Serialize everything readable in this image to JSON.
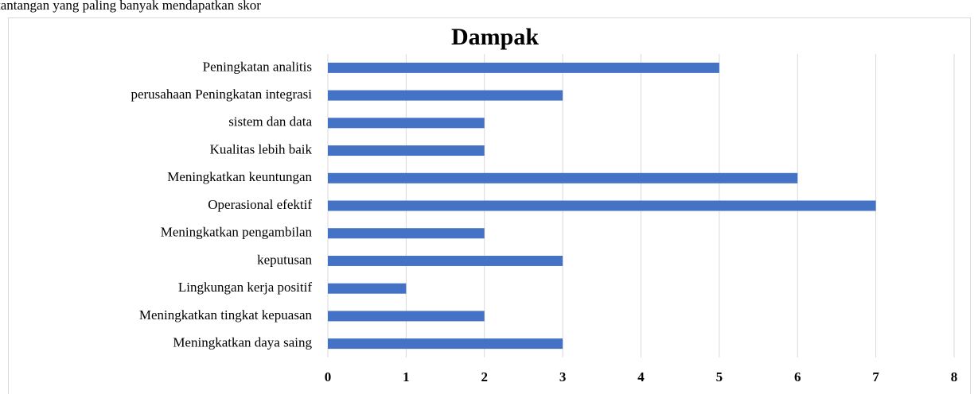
{
  "header": {
    "text": "tantangan yang paling banyak mendapatkan skor"
  },
  "chart_data": {
    "type": "bar",
    "orientation": "horizontal",
    "title": "Dampak",
    "categories": [
      "Peningkatan analitis",
      "perusahaan Peningkatan integrasi",
      "sistem dan data",
      "Kualitas lebih baik",
      "Meningkatkan keuntungan",
      "Operasional efektif",
      "Meningkatkan pengambilan",
      "keputusan",
      "Lingkungan kerja positif",
      "Meningkatkan tingkat kepuasan",
      "Meningkatkan daya saing"
    ],
    "values": [
      5,
      3,
      2,
      2,
      6,
      7,
      2,
      3,
      1,
      2,
      3
    ],
    "color": "#4472c4",
    "xlim": [
      0,
      8
    ],
    "xticks": [
      0,
      1,
      2,
      3,
      4,
      5,
      6,
      7,
      8
    ],
    "grid": true
  }
}
